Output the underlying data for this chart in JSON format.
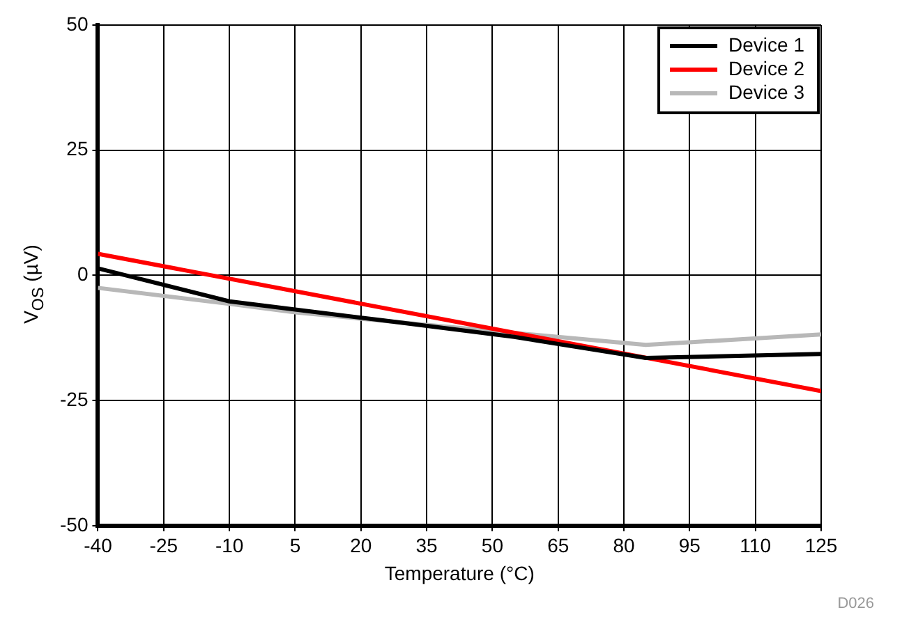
{
  "chart_data": {
    "type": "line",
    "xlabel": "Temperature (°C)",
    "ylabel": "V$_{OS}$ (µV)",
    "series": [
      {
        "name": "Device 1",
        "color": "#000000",
        "x": [
          -40,
          -10,
          25,
          55,
          85,
          125
        ],
        "values": [
          1.4,
          -5.2,
          -9,
          -12.3,
          -16.5,
          -15.7
        ]
      },
      {
        "name": "Device 2",
        "color": "#ff0000",
        "x": [
          -40,
          125
        ],
        "values": [
          4.3,
          -23.1
        ]
      },
      {
        "name": "Device 3",
        "color": "#b8b8b8",
        "x": [
          -40,
          -10,
          5,
          35,
          85,
          125
        ],
        "values": [
          -2.5,
          -5.7,
          -7.4,
          -9.9,
          -13.9,
          -11.8
        ]
      }
    ],
    "xlim": [
      -40,
      125
    ],
    "xticks": [
      -40,
      -25,
      -10,
      5,
      20,
      35,
      50,
      65,
      80,
      95,
      110,
      125
    ],
    "ylim": [
      -50,
      50
    ],
    "yticks": [
      -50,
      -25,
      0,
      25,
      50
    ],
    "grid": true,
    "legend": "top right",
    "marker": "none",
    "line_style": "solid",
    "annotations": [
      "D026"
    ]
  }
}
